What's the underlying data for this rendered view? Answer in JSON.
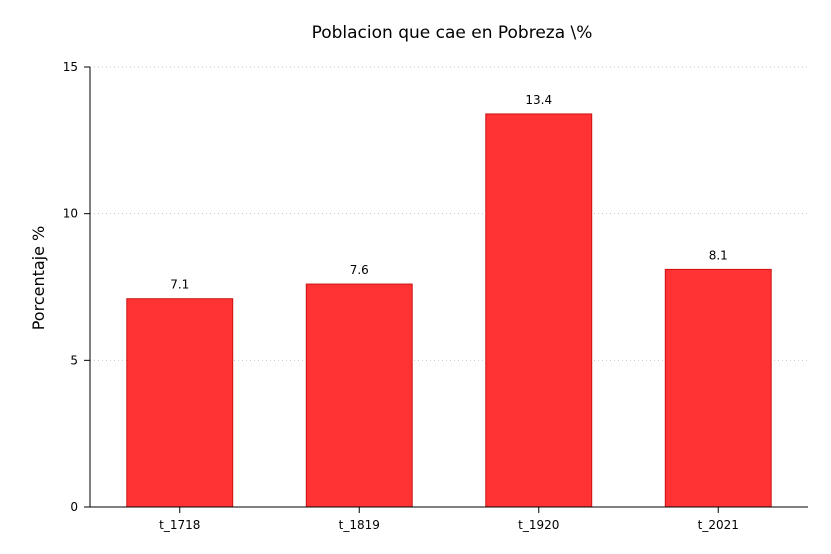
{
  "chart_data": {
    "type": "bar",
    "title": "Poblacion que cae en Pobreza \\%",
    "xlabel": "",
    "ylabel": "Porcentaje %",
    "categories": [
      "t_1718",
      "t_1819",
      "t_1920",
      "t_2021"
    ],
    "values": [
      7.1,
      7.6,
      13.4,
      8.1
    ],
    "data_labels": [
      "7.1",
      "7.6",
      "13.4",
      "8.1"
    ],
    "ylim": [
      0,
      15
    ],
    "yticks": [
      0,
      5,
      10,
      15
    ],
    "ytick_labels": [
      "0",
      "5",
      "10",
      "15"
    ],
    "grid": "horizontal-dotted",
    "legend": "none",
    "colors": {
      "bar_fill": "#ff3333",
      "bar_stroke": "#cc1111",
      "grid": "#c8c8c8",
      "axis": "#000000"
    }
  }
}
